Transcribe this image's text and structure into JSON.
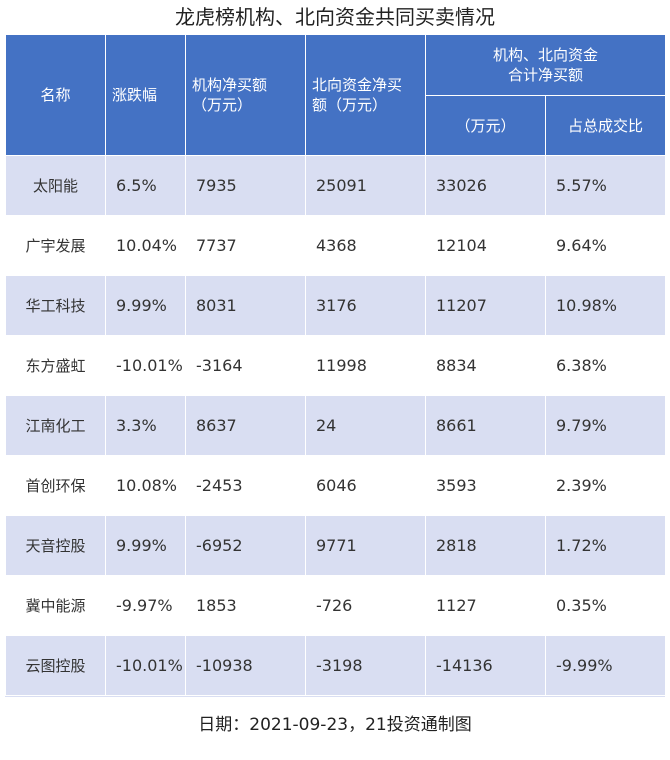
{
  "title": "龙虎榜机构、北向资金共同买卖情况",
  "header": {
    "name": "名称",
    "change": "涨跌幅",
    "inst_line1": "机构净买额",
    "inst_line2": "（万元）",
    "north_line1": "北向资金净买",
    "north_line2": "额（万元）",
    "combined_line1": "机构、北向资金",
    "combined_line2": "合计净买额",
    "combined_unit": "（万元）",
    "share": "占总成交比"
  },
  "chart_data": {
    "type": "table",
    "title": "龙虎榜机构、北向资金共同买卖情况",
    "columns": [
      "名称",
      "涨跌幅",
      "机构净买额（万元）",
      "北向资金净买额（万元）",
      "机构、北向资金合计净买额（万元）",
      "占总成交比"
    ],
    "rows": [
      [
        "太阳能",
        "6.5%",
        "7935",
        "25091",
        "33026",
        "5.57%"
      ],
      [
        "广宇发展",
        "10.04%",
        "7737",
        "4368",
        "12104",
        "9.64%"
      ],
      [
        "华工科技",
        "9.99%",
        "8031",
        "3176",
        "11207",
        "10.98%"
      ],
      [
        "东方盛虹",
        "-10.01%",
        "-3164",
        "11998",
        "8834",
        "6.38%"
      ],
      [
        "江南化工",
        "3.3%",
        "8637",
        "24",
        "8661",
        "9.79%"
      ],
      [
        "首创环保",
        "10.08%",
        "-2453",
        "6046",
        "3593",
        "2.39%"
      ],
      [
        "天音控股",
        "9.99%",
        "-6952",
        "9771",
        "2818",
        "1.72%"
      ],
      [
        "冀中能源",
        "-9.97%",
        "1853",
        "-726",
        "1127",
        "0.35%"
      ],
      [
        "云图控股",
        "-10.01%",
        "-10938",
        "-3198",
        "-14136",
        "-9.99%"
      ]
    ]
  },
  "footer": "日期：2021-09-23，21投资通制图",
  "colors": {
    "header_bg": "#4472c4",
    "stripe_bg": "#d9def2",
    "plain_bg": "#ffffff"
  }
}
